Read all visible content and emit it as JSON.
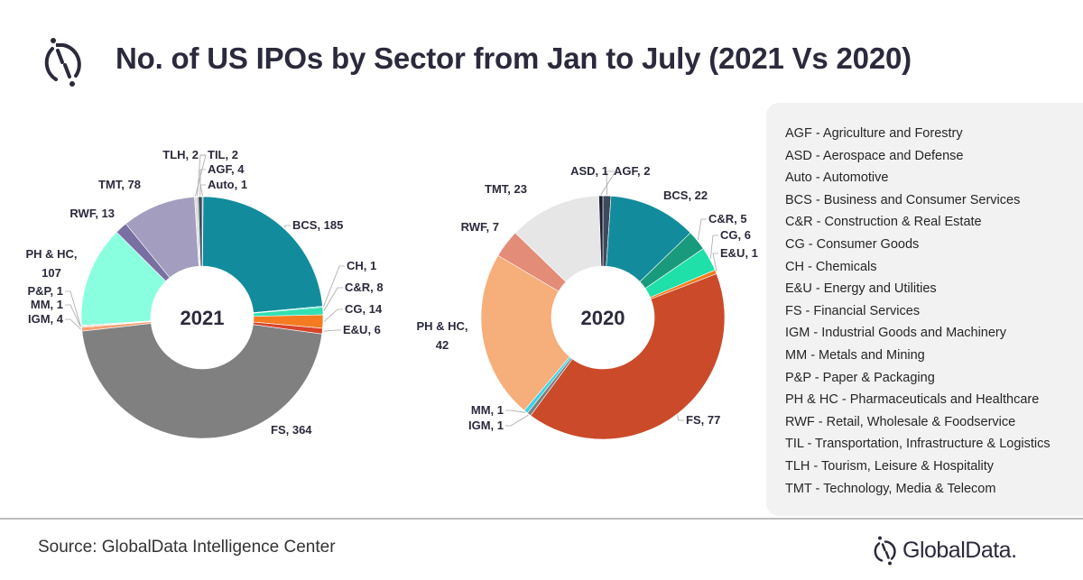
{
  "header": {
    "title": "No. of US IPOs by Sector from Jan to July (2021 Vs 2020)",
    "logo_icon": "globaldata-logo-icon"
  },
  "chart_data": [
    {
      "type": "pie",
      "variant": "donut",
      "title": "2021",
      "center_label": "2021",
      "categories": [
        "Auto",
        "BCS",
        "CH",
        "C&R",
        "CG",
        "E&U",
        "FS",
        "IGM",
        "MM",
        "P&P",
        "PH & HC",
        "RWF",
        "TMT",
        "TLH",
        "TIL",
        "AGF"
      ],
      "values": [
        1,
        185,
        1,
        8,
        14,
        6,
        364,
        4,
        1,
        1,
        107,
        13,
        78,
        2,
        2,
        4
      ],
      "labels": [
        "Auto, 1",
        "BCS, 185",
        "CH, 1",
        "C&R, 8",
        "CG, 14",
        "E&U, 6",
        "FS, 364",
        "IGM, 4",
        "MM, 1",
        "P&P, 1",
        "PH & HC, 107",
        "RWF, 13",
        "TMT, 78",
        "TLH, 2",
        "TIL, 2",
        "AGF, 4"
      ],
      "colors": [
        "#2b2a3d",
        "#128c9c",
        "#1fd1a3",
        "#33e0b3",
        "#f47b20",
        "#d8442a",
        "#808080",
        "#f9a071",
        "#f5b58f",
        "#e8a07a",
        "#8affe0",
        "#7a6fa3",
        "#a39dbf",
        "#d9d9d9",
        "#bfbfbf",
        "#3d4a5c"
      ]
    },
    {
      "type": "pie",
      "variant": "donut",
      "title": "2020",
      "center_label": "2020",
      "categories": [
        "AGF",
        "BCS",
        "C&R",
        "CG",
        "E&U",
        "FS",
        "IGM",
        "MM",
        "PH & HC",
        "RWF",
        "TMT",
        "ASD"
      ],
      "values": [
        2,
        22,
        5,
        6,
        1,
        77,
        1,
        1,
        42,
        7,
        23,
        1
      ],
      "labels": [
        "AGF, 2",
        "BCS, 22",
        "C&R, 5",
        "CG, 6",
        "E&U, 1",
        "FS, 77",
        "IGM, 1",
        "MM, 1",
        "PH & HC, 42",
        "RWF, 7",
        "TMT, 23",
        "ASD, 1"
      ],
      "colors": [
        "#3d4a5c",
        "#128c9c",
        "#1a9a7c",
        "#1fe0a8",
        "#f47b20",
        "#cb4a2a",
        "#7f7f7f",
        "#39d2e6",
        "#f6ae7a",
        "#e38c78",
        "#e6e6e6",
        "#1e1f33"
      ]
    }
  ],
  "legend": {
    "items": [
      {
        "abbr": "AGF",
        "desc": " - Agriculture and Forestry"
      },
      {
        "abbr": "ASD",
        "desc": " - Aerospace and Defense"
      },
      {
        "abbr": "Auto",
        "desc": " - Automotive"
      },
      {
        "abbr": "BCS",
        "desc": " - Business and Consumer Services"
      },
      {
        "abbr": "C&R",
        "desc": " - Construction & Real Estate"
      },
      {
        "abbr": "CG",
        "desc": " - Consumer Goods"
      },
      {
        "abbr": "CH",
        "desc": " - Chemicals"
      },
      {
        "abbr": "E&U",
        "desc": " - Energy and Utilities"
      },
      {
        "abbr": "FS",
        "desc": " - Financial Services"
      },
      {
        "abbr": "IGM",
        "desc": " - Industrial Goods and Machinery"
      },
      {
        "abbr": "MM",
        "desc": " - Metals and Mining"
      },
      {
        "abbr": "P&P",
        "desc": " - Paper & Packaging"
      },
      {
        "abbr": "PH & HC",
        "desc": " - Pharmaceuticals and Healthcare"
      },
      {
        "abbr": "RWF",
        "desc": " - Retail, Wholesale & Foodservice"
      },
      {
        "abbr": "TIL",
        "desc": " - Transportation, Infrastructure & Logistics"
      },
      {
        "abbr": "TLH",
        "desc": " - Tourism, Leisure & Hospitality"
      },
      {
        "abbr": "TMT",
        "desc": " - Technology, Media & Telecom"
      }
    ]
  },
  "footer": {
    "source": "Source: GlobalData Intelligence Center",
    "brand_name": "GlobalData."
  }
}
